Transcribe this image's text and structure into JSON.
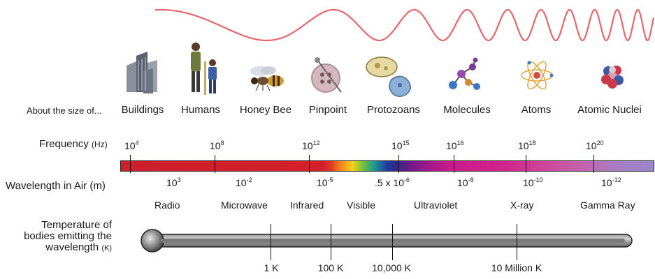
{
  "wave": {
    "color": "#e8666b"
  },
  "objects": {
    "about_label": "About the size of...",
    "items": [
      {
        "label": "Buildings"
      },
      {
        "label": "Humans"
      },
      {
        "label": "Honey Bee"
      },
      {
        "label": "Pinpoint"
      },
      {
        "label": "Protozoans"
      },
      {
        "label": "Molecules"
      },
      {
        "label": "Atoms"
      },
      {
        "label": "Atomic Nuclei"
      }
    ]
  },
  "frequency": {
    "title": "Frequency",
    "unit": "(Hz)",
    "values": [
      {
        "base": "10",
        "exp": "4"
      },
      {
        "base": "10",
        "exp": "8"
      },
      {
        "base": "10",
        "exp": "12"
      },
      {
        "base": "10",
        "exp": "15"
      },
      {
        "base": "10",
        "exp": "16"
      },
      {
        "base": "10",
        "exp": "18"
      },
      {
        "base": "10",
        "exp": "20"
      }
    ]
  },
  "wavelength": {
    "title": "Wavelength in Air (m)",
    "values": [
      {
        "base": "10",
        "exp": "3"
      },
      {
        "base": "10",
        "exp": "-2"
      },
      {
        "base": "10",
        "exp": "-5"
      },
      {
        "base": ".5 x 10",
        "exp": "-6"
      },
      {
        "base": "10",
        "exp": "-8"
      },
      {
        "base": "10",
        "exp": "-10"
      },
      {
        "base": "10",
        "exp": "-12"
      }
    ]
  },
  "bands": [
    "Radio",
    "Microwave",
    "Infrared",
    "Visible",
    "Ultraviolet",
    "X-ray",
    "Gamma Ray"
  ],
  "temperature": {
    "title": "Temperature of bodies emitting the wavelength",
    "unit": "(K)",
    "values": [
      "1 K",
      "100 K",
      "10,000 K",
      "10 Million K"
    ]
  }
}
